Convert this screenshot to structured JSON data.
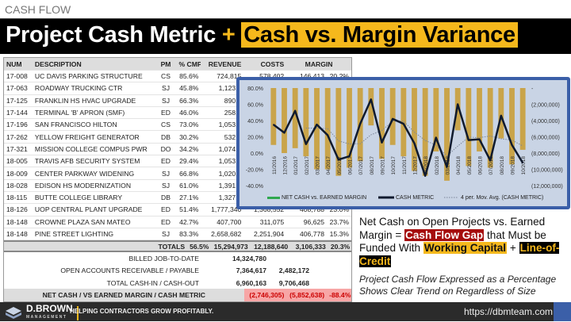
{
  "header": {
    "kicker": "CASH FLOW",
    "title_a": "Project Cash Metric",
    "plus": "+",
    "title_b": "Cash vs. Margin Variance"
  },
  "table": {
    "columns": [
      "NUM",
      "DESCRIPTION",
      "PM",
      "% CMP",
      "REVENUE",
      "COSTS",
      "MARGIN",
      ""
    ],
    "rows": [
      [
        "17-008",
        "UC DAVIS PARKING STRUCTURE",
        "CS",
        "85.6%",
        "724,815",
        "578,402",
        "146,413",
        "20.2%"
      ],
      [
        "17-063",
        "ROADWAY TRUCKING CTR",
        "SJ",
        "45.8%",
        "1,123,0",
        "",
        "",
        ""
      ],
      [
        "17-125",
        "FRANKLIN HS HVAC UPGRADE",
        "SJ",
        "66.3%",
        "890,1",
        "",
        "",
        ""
      ],
      [
        "17-144",
        "TERMINAL 'B' APRON (SMF)",
        "ED",
        "46.0%",
        "258,9",
        "",
        "",
        ""
      ],
      [
        "17-196",
        "SAN FRANCISCO HILTON",
        "CS",
        "73.0%",
        "1,053,6",
        "",
        "",
        ""
      ],
      [
        "17-262",
        "YELLOW FREIGHT GENERATOR",
        "DB",
        "30.2%",
        "532,6",
        "",
        "",
        ""
      ],
      [
        "17-321",
        "MISSION COLLEGE COMPUS PWR",
        "DO",
        "34.2%",
        "1,074,8",
        "",
        "",
        ""
      ],
      [
        "18-005",
        "TRAVIS AFB SECURITY SYSTEM",
        "ED",
        "29.4%",
        "1,053,2",
        "",
        "",
        ""
      ],
      [
        "18-009",
        "CENTER PARKWAY WIDENING",
        "SJ",
        "66.8%",
        "1,020,8",
        "",
        "",
        ""
      ],
      [
        "18-028",
        "EDISON HS MODERNIZATION",
        "SJ",
        "61.0%",
        "1,391,6",
        "",
        "",
        ""
      ],
      [
        "18-115",
        "BUTTE COLLEGE LIBRARY",
        "DB",
        "27.1%",
        "1,327,4",
        "",
        "",
        ""
      ],
      [
        "18-126",
        "UOP CENTRAL PLANT UPGRADE",
        "ED",
        "51.4%",
        "1,777,340",
        "1,368,552",
        "408,788",
        "23.0%"
      ],
      [
        "18-148",
        "CROWNE PLAZA SAN MATEO",
        "ED",
        "42.7%",
        "407,700",
        "311,075",
        "96,625",
        "23.7%"
      ],
      [
        "18-148",
        "PINE STREET LIGHTING",
        "SJ",
        "83.3%",
        "2,658,682",
        "2,251,904",
        "406,778",
        "15.3%"
      ]
    ],
    "totals": {
      "label": "TOTALS",
      "pct": "56.5%",
      "revenue": "15,294,973",
      "costs": "12,188,640",
      "margin": "3,106,333",
      "margin_pct": "20.3%"
    },
    "billed": {
      "label": "BILLED JOB-TO-DATE",
      "value": "14,324,780"
    },
    "open": {
      "label": "OPEN ACCOUNTS RECEIVABLE / PAYABLE",
      "in": "7,364,617",
      "out": "2,482,172"
    },
    "total_cash": {
      "label": "TOTAL CASH-IN / CASH-OUT",
      "in": "6,960,163",
      "out": "9,706,468"
    },
    "net": {
      "label": "NET CASH / VS EARNED MARGIN / CASH METRIC",
      "net_cash": "(2,746,305)",
      "vs_margin": "(5,852,638)",
      "metric": "-88.4%"
    }
  },
  "chart_data": {
    "type": "bar+line",
    "categories": [
      "11/2016",
      "12/2016",
      "01/2017",
      "02/2017",
      "03/2017",
      "04/2017",
      "05/2017",
      "06/2017",
      "07/2017",
      "08/2017",
      "09/2017",
      "10/2017",
      "11/2017",
      "12/2017",
      "01/2018",
      "02/2018",
      "03/2018",
      "04/2018",
      "05/2018",
      "06/2018",
      "07/2018",
      "08/2018",
      "09/2018",
      "10/2018"
    ],
    "left_axis": {
      "ticks": [
        "80.0%",
        "60.0%",
        "40.0%",
        "20.0%",
        "0.0%",
        "-20.0%",
        "-40.0%"
      ],
      "range": [
        -40,
        80
      ]
    },
    "right_axis": {
      "ticks": [
        "-",
        "(2,000,000)",
        "(4,000,000)",
        "(6,000,000)",
        "(8,000,000)",
        "(10,000,000)",
        "(12,000,000)"
      ],
      "range": [
        -12000000,
        0
      ]
    },
    "series": [
      {
        "name": "NET CASH vs. EARNED MARGIN",
        "type": "bar",
        "axis": "right",
        "color": "#c9a44a",
        "values": [
          -7000000,
          -8000000,
          -7400000,
          -8400000,
          -10000000,
          -10000000,
          -10800000,
          -9800000,
          -9000000,
          -4600000,
          -8700000,
          -7000000,
          -8400000,
          -10200000,
          -10800000,
          -7800000,
          -11400000,
          -5200000,
          -9600000,
          -7800000,
          -9800000,
          -6200000,
          -9400000,
          -7600000
        ]
      },
      {
        "name": "CASH METRIC",
        "type": "line",
        "axis": "left",
        "color": "#0f1a2e",
        "values": [
          35,
          25,
          52,
          11,
          35,
          22,
          -8,
          -4,
          36,
          66,
          13,
          42,
          36,
          12,
          -28,
          19,
          -17,
          60,
          16,
          17,
          -9,
          46,
          10,
          -12
        ]
      },
      {
        "name": "4 per. Mov. Avg. (CASH METRIC)",
        "type": "trendline",
        "axis": "left",
        "color": "#7c8699"
      }
    ],
    "legend": "bottom"
  },
  "callout": {
    "a": "Net Cash on Open Projects vs. Earned Margin = ",
    "b": "Cash Flow Gap",
    "c": " that Must be Funded With ",
    "d": "Working Capital",
    "e": " + ",
    "f": "Line-of-Credit"
  },
  "subtext": "Project Cash Flow Expressed as a Percentage Shows Clear Trend on Regardless of Size",
  "footer": {
    "brand": "D.BROWN",
    "brand_sub": "MANAGEMENT",
    "tagline": "HELPING CONTRACTORS GROW PROFITABLY.",
    "url": "https://dbmteam.com"
  }
}
